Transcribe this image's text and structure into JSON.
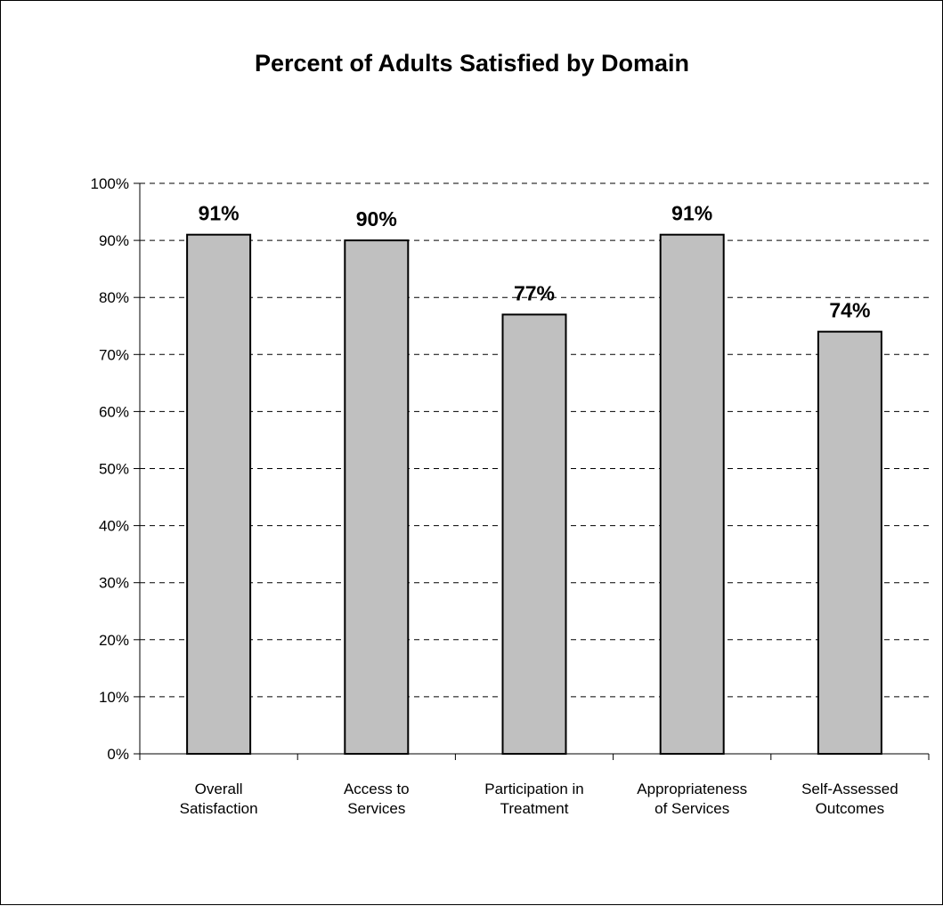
{
  "chart_data": {
    "type": "bar",
    "title": "Percent of Adults Satisfied by Domain",
    "categories": [
      [
        "Overall",
        "Satisfaction"
      ],
      [
        "Access to",
        "Services"
      ],
      [
        "Participation in",
        "Treatment"
      ],
      [
        "Appropriateness",
        "of Services"
      ],
      [
        "Self-Assessed",
        "Outcomes"
      ]
    ],
    "values": [
      91,
      90,
      77,
      91,
      74
    ],
    "data_labels": [
      "91%",
      "90%",
      "77%",
      "91%",
      "74%"
    ],
    "y_ticks": [
      "0%",
      "10%",
      "20%",
      "30%",
      "40%",
      "50%",
      "60%",
      "70%",
      "80%",
      "90%",
      "100%"
    ],
    "ylim": [
      0,
      100
    ],
    "grid": "horizontal-dashed",
    "legend": "none",
    "bar_color": "#c0c0c0",
    "bar_edge_color": "#000000"
  }
}
